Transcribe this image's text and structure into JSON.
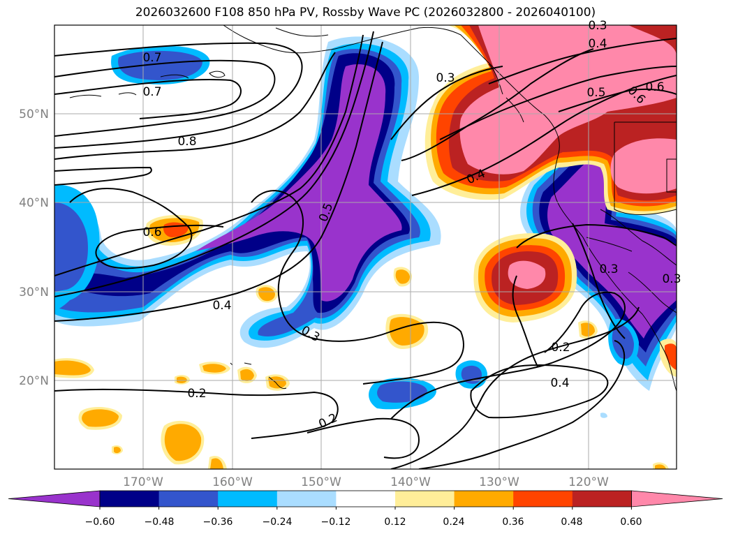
{
  "title": "2026032600 F108 850 hPa PV, Rossby Wave PC (2026032800 - 2026040100)",
  "map": {
    "lon_labels": [
      "170°W",
      "160°W",
      "150°W",
      "140°W",
      "130°W",
      "120°W"
    ],
    "lat_labels": [
      "50°N",
      "40°N",
      "30°N",
      "20°N"
    ],
    "contour_labels": [
      "0.7",
      "0.7",
      "0.8",
      "0.6",
      "0.5",
      "0.4",
      "0.3",
      "0.3",
      "0.4",
      "0.2",
      "0.2",
      "0.3",
      "0.4",
      "0.5",
      "0.6",
      "0.6",
      "0.3",
      "0.2",
      "0.4",
      "0.3"
    ]
  },
  "colorbar": {
    "ticks": [
      "−0.60",
      "−0.48",
      "−0.36",
      "−0.24",
      "−0.12",
      "0.12",
      "0.24",
      "0.36",
      "0.48",
      "0.60"
    ],
    "colors": [
      "#9933cc",
      "#000088",
      "#3355cc",
      "#00bbff",
      "#aaddff",
      "#ffffff",
      "#ffee99",
      "#ffaa00",
      "#ff4400",
      "#bb2222",
      "#ff88aa"
    ]
  }
}
